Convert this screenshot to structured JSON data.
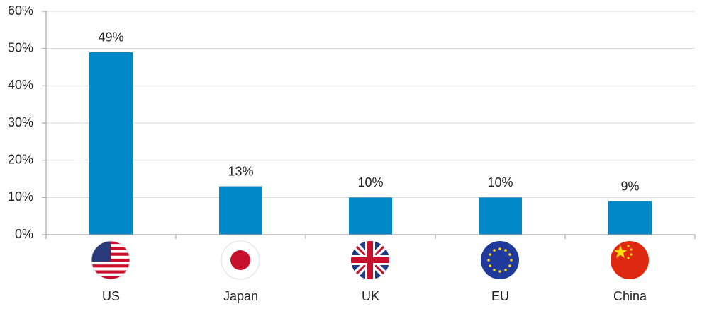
{
  "chart_data": {
    "type": "bar",
    "categories": [
      "US",
      "Japan",
      "UK",
      "EU",
      "China"
    ],
    "values": [
      49,
      13,
      10,
      10,
      9
    ],
    "value_labels": [
      "49%",
      "13%",
      "10%",
      "10%",
      "9%"
    ],
    "color": "#0088c8",
    "ylim": [
      0,
      60
    ],
    "yticks": [
      {
        "value": 0,
        "label": "0%"
      },
      {
        "value": 10,
        "label": "10%"
      },
      {
        "value": 20,
        "label": "20%"
      },
      {
        "value": 30,
        "label": "30%"
      },
      {
        "value": 40,
        "label": "40%"
      },
      {
        "value": 50,
        "label": "50%"
      },
      {
        "value": 60,
        "label": "60%"
      }
    ],
    "grid": true
  }
}
